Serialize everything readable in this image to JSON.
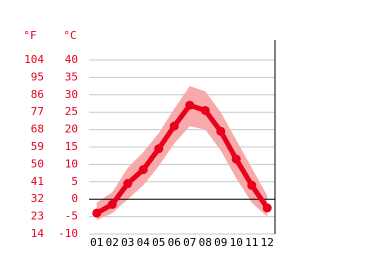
{
  "chart_data": {
    "type": "line",
    "y_label": "°C",
    "y2_label": "°F",
    "categories": [
      "01",
      "02",
      "03",
      "04",
      "05",
      "06",
      "07",
      "08",
      "09",
      "10",
      "11",
      "12"
    ],
    "series": [
      {
        "color": "#e8001c",
        "values": [
          -4,
          -1.5,
          4.5,
          8.5,
          14.5,
          21,
          27,
          25.5,
          19.5,
          11.5,
          4,
          -2.5
        ]
      },
      {
        "color": "#f8a9a9",
        "values": [
          -1,
          2,
          9,
          13.5,
          19,
          26,
          32.5,
          31,
          25,
          17,
          9,
          1
        ]
      },
      {
        "color": "#f8a9a9",
        "values": [
          -6,
          -4,
          0,
          4,
          9.5,
          16,
          21,
          20,
          14,
          6,
          -1,
          -5
        ]
      }
    ],
    "ylim": [
      -10,
      40
    ],
    "yticks": [
      -10,
      -5,
      0,
      5,
      10,
      15,
      20,
      25,
      30,
      35,
      40
    ],
    "y2lim": [
      14,
      104
    ],
    "y2ticks": [
      14,
      23,
      32,
      41,
      50,
      59,
      68,
      77,
      86,
      95,
      104
    ],
    "grid": true
  }
}
